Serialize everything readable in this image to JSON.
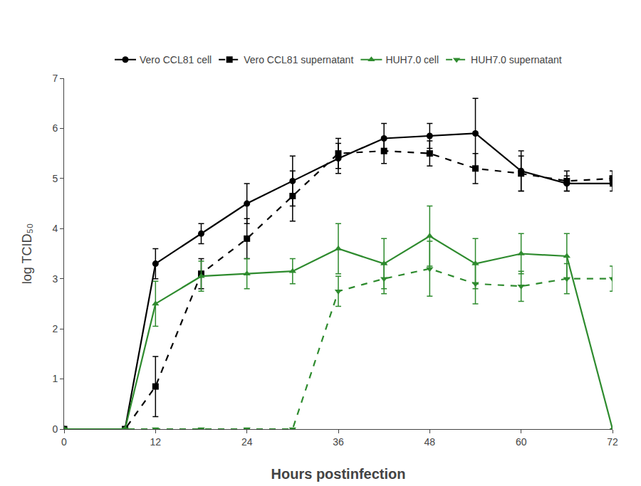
{
  "chart_data": {
    "type": "line",
    "xlabel": "Hours postinfection",
    "ylabel": "log TCID₅₀",
    "x": [
      0,
      8,
      12,
      18,
      24,
      30,
      36,
      42,
      48,
      54,
      60,
      66,
      72
    ],
    "series": [
      {
        "name": "Vero CCL81 cell",
        "color": "#000000",
        "marker": "circle",
        "line_style": "solid",
        "values": [
          0,
          0,
          3.3,
          3.9,
          4.5,
          4.95,
          5.4,
          5.8,
          5.85,
          5.9,
          5.15,
          4.9,
          4.9
        ],
        "yerr": [
          0,
          0,
          0.3,
          0.2,
          0.4,
          0.5,
          0.3,
          0.3,
          0.25,
          0.7,
          0.4,
          0.15,
          0.15
        ]
      },
      {
        "name": "Vero CCL81 supernatant",
        "color": "#000000",
        "marker": "square",
        "line_style": "dashed",
        "values": [
          0,
          0,
          0.85,
          3.1,
          3.8,
          4.65,
          5.5,
          5.55,
          5.5,
          5.2,
          5.1,
          4.95,
          5.0
        ],
        "yerr": [
          0,
          0,
          0.6,
          0.3,
          0.4,
          0.5,
          0.3,
          0.25,
          0.25,
          0.3,
          0.35,
          0.2,
          0.15
        ]
      },
      {
        "name": "HUH7.0 cell",
        "color": "#2e8b2e",
        "marker": "triangle-up",
        "line_style": "solid",
        "values": [
          0,
          0,
          2.5,
          3.05,
          3.1,
          3.15,
          3.6,
          3.3,
          3.85,
          3.3,
          3.5,
          3.45,
          0.0
        ],
        "yerr": [
          0,
          0,
          0.45,
          0.3,
          0.3,
          0.25,
          0.5,
          0.5,
          0.6,
          0.5,
          0.4,
          0.45,
          0.0
        ]
      },
      {
        "name": "HUH7.0 supernatant",
        "color": "#2e8b2e",
        "marker": "triangle-down",
        "line_style": "dashed",
        "values": [
          0,
          0,
          0.0,
          0.0,
          0.0,
          0.0,
          2.75,
          3.0,
          3.2,
          2.9,
          2.85,
          3.0,
          3.0
        ],
        "yerr": [
          0,
          0,
          0.0,
          0.0,
          0.0,
          0.0,
          0.3,
          0.3,
          0.55,
          0.4,
          0.3,
          0.3,
          0.25
        ]
      }
    ],
    "xlim": [
      0,
      72
    ],
    "ylim": [
      0,
      7
    ],
    "xticks": [
      0,
      12,
      24,
      36,
      48,
      60,
      72
    ],
    "yticks": [
      0,
      1,
      2,
      3,
      4,
      5,
      6,
      7
    ],
    "grid": false,
    "legend": "top"
  }
}
